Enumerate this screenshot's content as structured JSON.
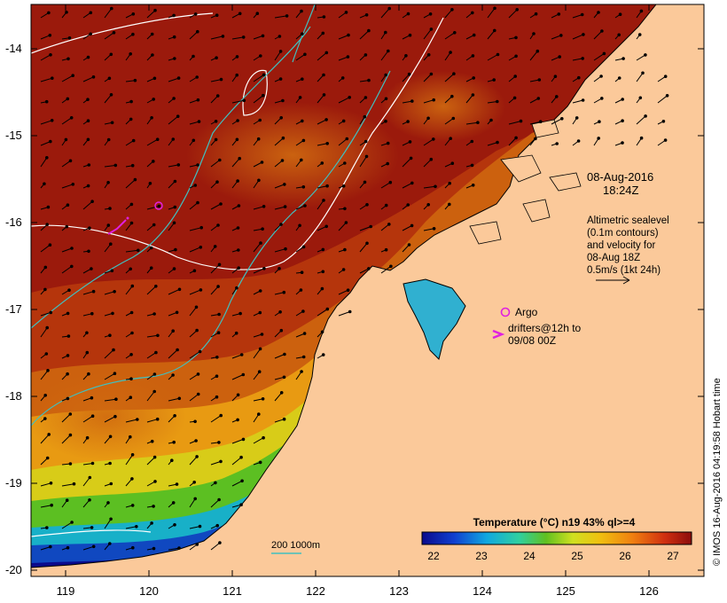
{
  "map": {
    "date_line": "08-Aug-2016",
    "time_line": "18:24Z",
    "altimetry_lines": [
      "Altimetric sealevel",
      "(0.1m contours)",
      "and velocity for",
      "08-Aug 18Z",
      "0.5m/s (1kt 24h)"
    ],
    "argo_label": "Argo",
    "drifter_lines": [
      "drifters@12h to",
      "09/08 00Z"
    ],
    "depth_legend": "200  1000m",
    "credit": "© IMOS 16-Aug-2016 04:19:58 Hobart time",
    "colorbar_title": "Temperature (°C) n19 43% ql>=4",
    "colorbar_ticks": [
      "22",
      "23",
      "24",
      "25",
      "26",
      "27"
    ],
    "lat_labels": [
      "-14",
      "-15",
      "-16",
      "-17",
      "-18",
      "-19",
      "-20"
    ],
    "lon_labels": [
      "119",
      "120",
      "121",
      "122",
      "123",
      "124",
      "125",
      "126"
    ],
    "colors": {
      "land": "#fbc99a",
      "warm": "#9b1a0c",
      "argo": "#e020e0",
      "isobath": "#40c0c0",
      "contour": "#ffffff"
    },
    "colorbar_stops": [
      "#0a0a8c",
      "#1040d0",
      "#10a8e0",
      "#30d0a0",
      "#60c020",
      "#d0e020",
      "#f0c010",
      "#f08010",
      "#d03010",
      "#8c0c0c"
    ]
  }
}
